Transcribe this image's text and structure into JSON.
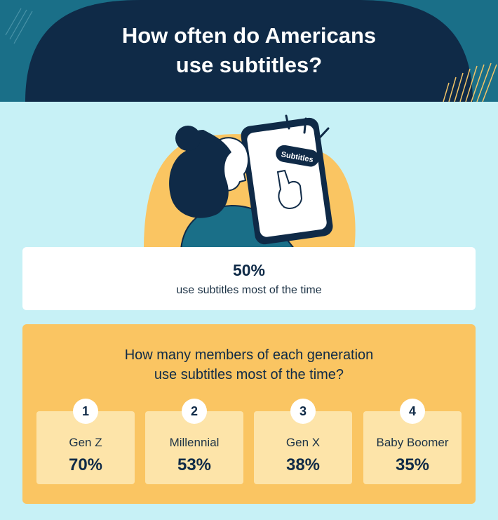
{
  "title": {
    "line1": "How often do Americans",
    "line2": "use subtitles?"
  },
  "illustration": {
    "button_label": "Subtitles"
  },
  "stat": {
    "value": "50%",
    "label": "use subtitles most of the time"
  },
  "generations": {
    "question_line1": "How many members of each generation",
    "question_line2": "use subtitles most of the time?",
    "items": [
      {
        "rank": "1",
        "name": "Gen Z",
        "percent": "70%"
      },
      {
        "rank": "2",
        "name": "Millennial",
        "percent": "53%"
      },
      {
        "rank": "3",
        "name": "Gen X",
        "percent": "38%"
      },
      {
        "rank": "4",
        "name": "Baby Boomer",
        "percent": "35%"
      }
    ]
  },
  "colors": {
    "navy": "#0f2a47",
    "teal": "#1a6f88",
    "light_blue": "#c7f1f6",
    "yellow": "#fac562",
    "pale_yellow": "#fde4a9"
  }
}
